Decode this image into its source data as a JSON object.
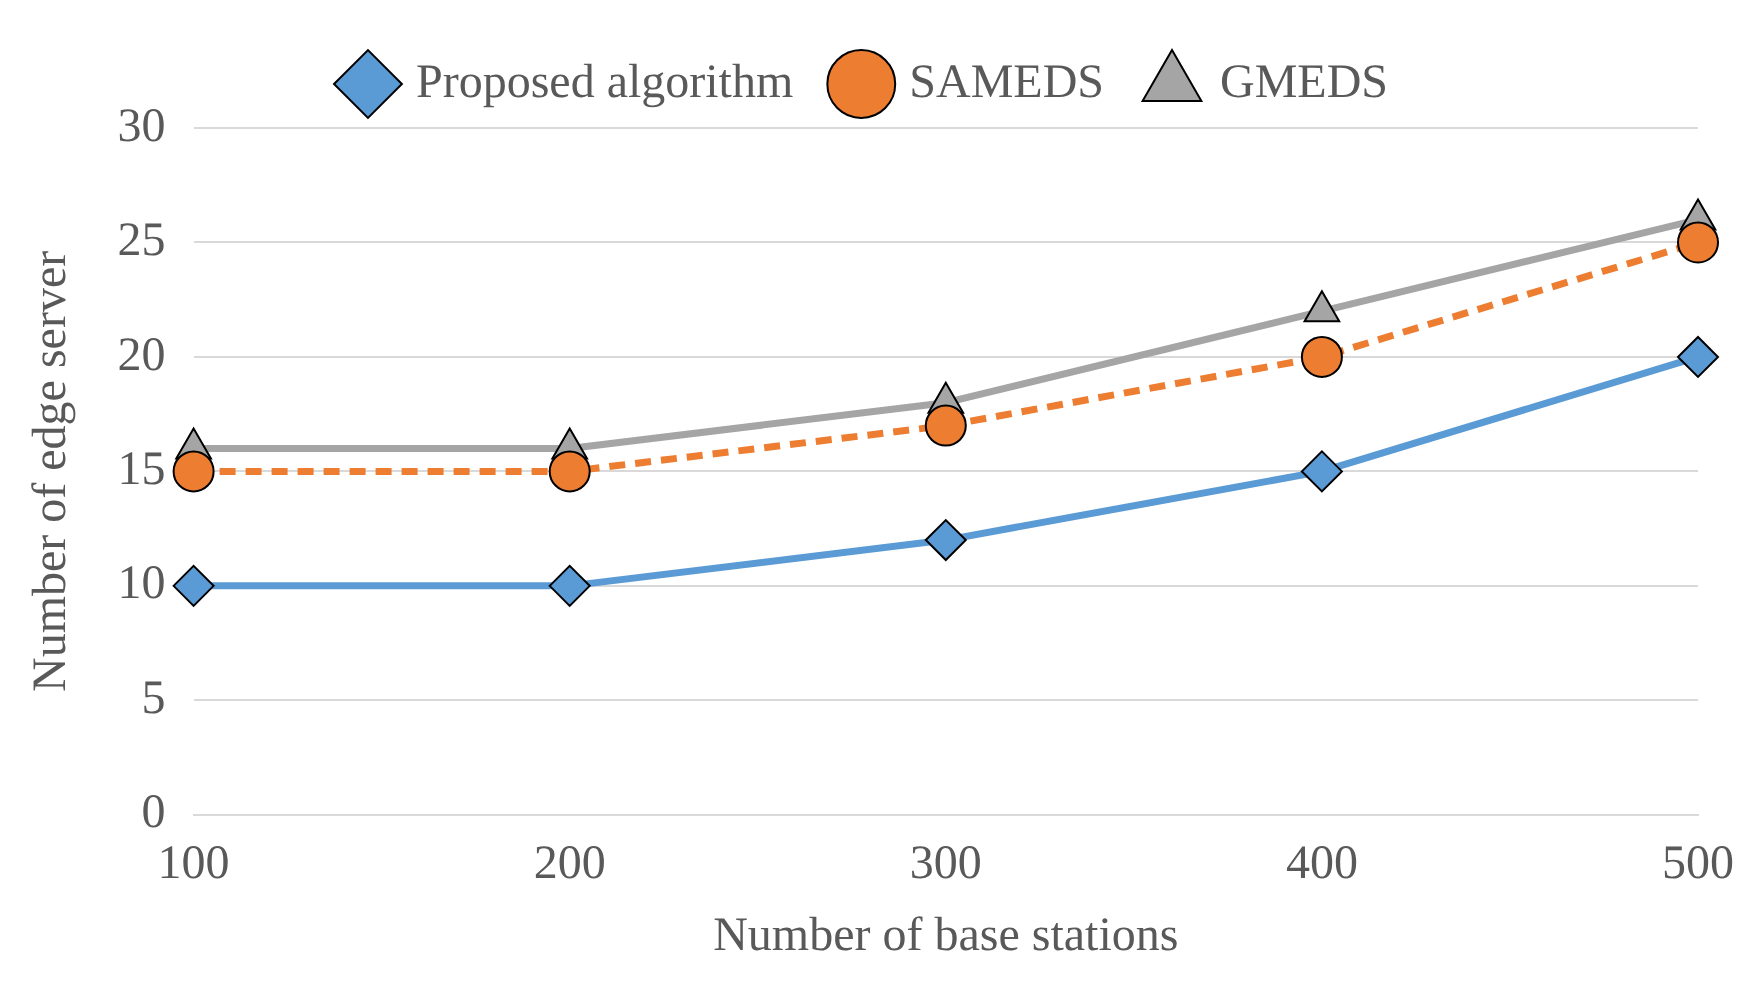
{
  "chart_data": {
    "type": "line",
    "xlabel": "Number of base stations",
    "ylabel": "Number of edge server",
    "categories": [
      "100",
      "200",
      "300",
      "400",
      "500"
    ],
    "series": [
      {
        "name": "Proposed algorithm",
        "color": "#5b9bd5",
        "marker": "diamond",
        "line_style": "solid",
        "values": [
          10,
          10,
          12,
          15,
          20
        ]
      },
      {
        "name": "SAMEDS",
        "color": "#ed7d31",
        "marker": "circle",
        "line_style": "dashed",
        "values": [
          15,
          15,
          17,
          20,
          25
        ]
      },
      {
        "name": "GMEDS",
        "color": "#a5a5a5",
        "marker": "triangle",
        "line_style": "solid",
        "values": [
          16,
          16,
          18,
          22,
          26
        ]
      }
    ],
    "ylim": [
      0,
      30
    ],
    "yticks": [
      0,
      5,
      10,
      15,
      20,
      25,
      30
    ],
    "grid": "y",
    "legend": "top"
  }
}
